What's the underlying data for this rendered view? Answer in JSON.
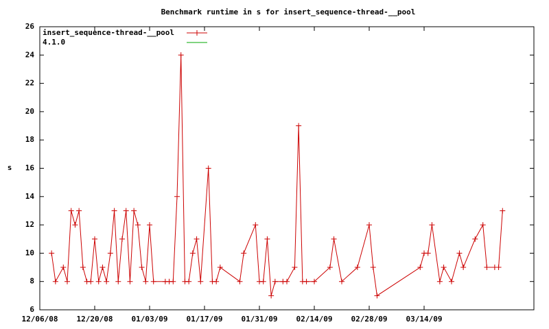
{
  "chart_data": {
    "type": "line",
    "title": "Benchmark runtime in s for insert_sequence-thread-__pool",
    "y_label": "s",
    "x": [
      "12/09/08",
      "12/10/08",
      "12/12/08",
      "12/13/08",
      "12/14/08",
      "12/15/08",
      "12/16/08",
      "12/17/08",
      "12/18/08",
      "12/19/08",
      "12/20/08",
      "12/21/08",
      "12/22/08",
      "12/23/08",
      "12/24/08",
      "12/25/08",
      "12/26/08",
      "12/27/08",
      "12/28/08",
      "12/29/08",
      "12/30/08",
      "12/31/08",
      "01/01/09",
      "01/02/09",
      "01/03/09",
      "01/04/09",
      "01/07/09",
      "01/08/09",
      "01/09/09",
      "01/10/09",
      "01/11/09",
      "01/12/09",
      "01/13/09",
      "01/14/09",
      "01/15/09",
      "01/16/09",
      "01/18/09",
      "01/19/09",
      "01/20/09",
      "01/21/09",
      "01/26/09",
      "01/27/09",
      "01/30/09",
      "01/31/09",
      "02/01/09",
      "02/02/09",
      "02/03/09",
      "02/04/09",
      "02/06/09",
      "02/07/09",
      "02/09/09",
      "02/10/09",
      "02/11/09",
      "02/12/09",
      "02/14/09",
      "02/18/09",
      "02/19/09",
      "02/21/09",
      "02/25/09",
      "02/28/09",
      "03/01/09",
      "03/02/09",
      "03/13/09",
      "03/14/09",
      "03/15/09",
      "03/16/09",
      "03/18/09",
      "03/19/09",
      "03/21/09",
      "03/23/09",
      "03/24/09",
      "03/27/09",
      "03/29/09",
      "03/30/09",
      "04/01/09",
      "04/02/09",
      "04/03/09"
    ],
    "series": [
      {
        "name": "insert_sequence-thread-__pool",
        "color": "#cc0000",
        "values": [
          10,
          8,
          9,
          8,
          13,
          12,
          13,
          9,
          8,
          8,
          11,
          8,
          9,
          8,
          10,
          13,
          8,
          11,
          13,
          8,
          13,
          12,
          9,
          8,
          12,
          8,
          8,
          8,
          8,
          14,
          24,
          8,
          8,
          10,
          11,
          8,
          16,
          8,
          8,
          9,
          8,
          10,
          12,
          8,
          8,
          11,
          7,
          8,
          8,
          8,
          9,
          19,
          8,
          8,
          8,
          9,
          11,
          8,
          9,
          12,
          9,
          7,
          9,
          10,
          10,
          12,
          8,
          9,
          8,
          10,
          9,
          11,
          12,
          9,
          9,
          9,
          13
        ]
      },
      {
        "name": "4.1.0",
        "color": "#00aa00",
        "values": [
          null,
          null,
          null,
          null,
          null,
          null,
          null,
          null,
          null,
          null,
          null,
          null,
          null,
          null,
          null,
          null,
          null,
          null,
          null,
          null,
          null,
          null,
          null,
          null,
          null,
          null,
          null,
          null,
          null,
          null,
          null,
          null,
          null,
          null,
          null,
          null,
          null,
          null,
          null,
          null,
          null,
          null,
          null,
          null,
          null,
          null,
          null,
          null,
          null,
          null,
          null,
          null,
          null,
          null,
          null,
          null,
          null,
          null,
          null,
          null,
          null,
          null,
          null,
          null,
          null,
          null,
          null,
          null,
          null,
          null,
          null,
          null,
          null,
          null,
          null,
          null,
          null
        ]
      }
    ],
    "xlim": [
      "12/06/08",
      "04/11/09"
    ],
    "xticks": [
      "12/06/08",
      "12/20/08",
      "01/03/09",
      "01/17/09",
      "01/31/09",
      "02/14/09",
      "02/28/09",
      "03/14/09"
    ],
    "ylim": [
      6,
      26
    ],
    "yticks": [
      6,
      8,
      10,
      12,
      14,
      16,
      18,
      20,
      22,
      24,
      26
    ],
    "grid": false,
    "legend": "upper left"
  }
}
